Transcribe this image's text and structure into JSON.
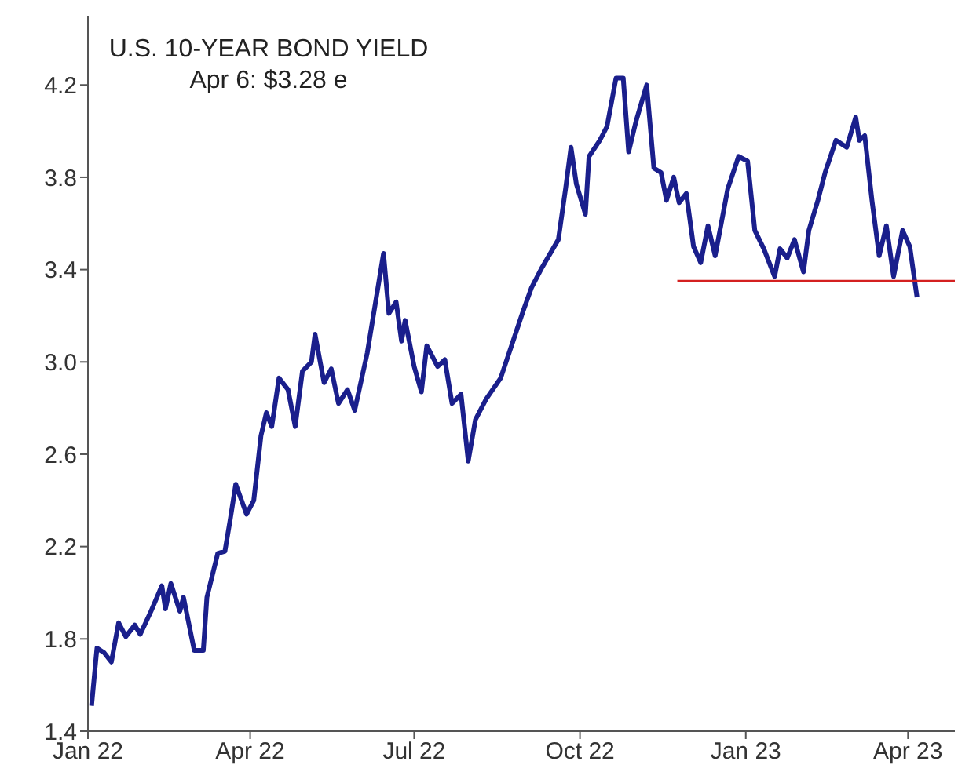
{
  "chart_data": {
    "type": "line",
    "title": "U.S. 10-YEAR BOND YIELD",
    "subtitle": "Apr 6: $3.28 e",
    "xlim": [
      "2022-01-01",
      "2023-04-27"
    ],
    "xticks": [
      {
        "value": "2022-01-01",
        "label": "Jan 22"
      },
      {
        "value": "2022-04-01",
        "label": "Apr 22"
      },
      {
        "value": "2022-07-01",
        "label": "Jul 22"
      },
      {
        "value": "2022-10-01",
        "label": "Oct 22"
      },
      {
        "value": "2023-01-01",
        "label": "Jan 23"
      },
      {
        "value": "2023-04-01",
        "label": "Apr 23"
      }
    ],
    "ylim": [
      1.4,
      4.5
    ],
    "yticks": [
      1.4,
      1.8,
      2.2,
      2.6,
      {
        "value": 3,
        "label": "3.0"
      },
      3.4,
      3.8,
      4.2
    ],
    "line_style": "solid",
    "marker": "none",
    "series": [
      {
        "color": "#1a1f8c",
        "x": [
          "2022-01-03",
          "2022-01-06",
          "2022-01-10",
          "2022-01-14",
          "2022-01-18",
          "2022-01-22",
          "2022-01-27",
          "2022-01-30",
          "2022-02-05",
          "2022-02-11",
          "2022-02-13",
          "2022-02-16",
          "2022-02-21",
          "2022-02-23",
          "2022-03-01",
          "2022-03-06",
          "2022-03-08",
          "2022-03-14",
          "2022-03-18",
          "2022-03-21",
          "2022-03-24",
          "2022-03-30",
          "2022-04-03",
          "2022-04-07",
          "2022-04-10",
          "2022-04-13",
          "2022-04-17",
          "2022-04-22",
          "2022-04-26",
          "2022-04-30",
          "2022-05-05",
          "2022-05-07",
          "2022-05-12",
          "2022-05-16",
          "2022-05-20",
          "2022-05-25",
          "2022-05-29",
          "2022-06-05",
          "2022-06-14",
          "2022-06-17",
          "2022-06-21",
          "2022-06-24",
          "2022-06-26",
          "2022-07-01",
          "2022-07-05",
          "2022-07-08",
          "2022-07-14",
          "2022-07-18",
          "2022-07-22",
          "2022-07-27",
          "2022-07-31",
          "2022-08-04",
          "2022-08-10",
          "2022-08-18",
          "2022-08-24",
          "2022-08-30",
          "2022-09-04",
          "2022-09-10",
          "2022-09-19",
          "2022-09-23",
          "2022-09-26",
          "2022-09-29",
          "2022-10-04",
          "2022-10-06",
          "2022-10-12",
          "2022-10-16",
          "2022-10-21",
          "2022-10-25",
          "2022-10-28",
          "2022-11-01",
          "2022-11-07",
          "2022-11-11",
          "2022-11-15",
          "2022-11-18",
          "2022-11-22",
          "2022-11-25",
          "2022-11-29",
          "2022-12-03",
          "2022-12-07",
          "2022-12-11",
          "2022-12-15",
          "2022-12-22",
          "2022-12-28",
          "2023-01-02",
          "2023-01-06",
          "2023-01-11",
          "2023-01-17",
          "2023-01-20",
          "2023-01-24",
          "2023-01-28",
          "2023-02-02",
          "2023-02-05",
          "2023-02-10",
          "2023-02-14",
          "2023-02-20",
          "2023-02-26",
          "2023-03-03",
          "2023-03-05",
          "2023-03-08",
          "2023-03-12",
          "2023-03-16",
          "2023-03-20",
          "2023-03-24",
          "2023-03-29",
          "2023-04-02",
          "2023-04-06"
        ],
        "values": [
          1.51,
          1.76,
          1.74,
          1.7,
          1.87,
          1.81,
          1.86,
          1.82,
          1.92,
          2.03,
          1.93,
          2.04,
          1.92,
          1.98,
          1.75,
          1.75,
          1.98,
          2.17,
          2.18,
          2.32,
          2.47,
          2.34,
          2.4,
          2.68,
          2.78,
          2.72,
          2.93,
          2.88,
          2.72,
          2.96,
          3.0,
          3.12,
          2.91,
          2.97,
          2.82,
          2.88,
          2.79,
          3.04,
          3.47,
          3.21,
          3.26,
          3.09,
          3.18,
          2.98,
          2.87,
          3.07,
          2.98,
          3.01,
          2.82,
          2.86,
          2.57,
          2.75,
          2.84,
          2.93,
          3.07,
          3.21,
          3.32,
          3.41,
          3.53,
          3.75,
          3.93,
          3.77,
          3.64,
          3.89,
          3.96,
          4.02,
          4.23,
          4.23,
          3.91,
          4.04,
          4.2,
          3.84,
          3.82,
          3.7,
          3.8,
          3.69,
          3.73,
          3.5,
          3.43,
          3.59,
          3.46,
          3.75,
          3.89,
          3.87,
          3.57,
          3.49,
          3.37,
          3.49,
          3.45,
          3.53,
          3.39,
          3.57,
          3.7,
          3.82,
          3.96,
          3.93,
          4.06,
          3.96,
          3.98,
          3.7,
          3.46,
          3.59,
          3.37,
          3.57,
          3.5,
          3.28
        ]
      },
      {
        "color": "#d42020",
        "x": [
          "2022-11-24",
          "2023-04-27"
        ],
        "values": [
          3.35,
          3.35
        ]
      }
    ]
  }
}
